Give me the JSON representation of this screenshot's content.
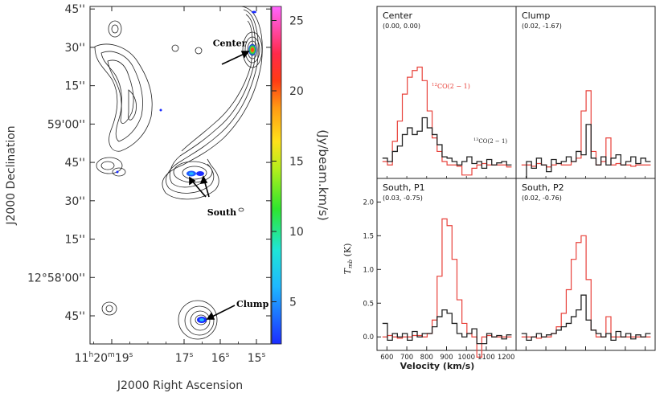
{
  "chart_data": [
    {
      "type": "heatmap",
      "title": "",
      "xlabel": "J2000 Right Ascension",
      "ylabel": "J2000 Declination",
      "colorbar_label": "(Jy/beam.km/s)",
      "colorbar_range": [
        2,
        26
      ],
      "colorbar_ticks": [
        5,
        10,
        15,
        20,
        25
      ],
      "colorbar_tick_labels": [
        "5",
        "10",
        "15",
        "20",
        "25"
      ],
      "x_ticks": [
        {
          "h": "11",
          "m": "20",
          "s": "19",
          "ra_s": 19
        },
        {
          "h": "",
          "m": "",
          "s": "17",
          "ra_s": 17
        },
        {
          "h": "",
          "m": "",
          "s": "16",
          "ra_s": 16
        },
        {
          "h": "",
          "m": "",
          "s": "15",
          "ra_s": 15
        }
      ],
      "x_sup_h": "h",
      "x_sup_m": "m",
      "x_sup_s": "s",
      "ra_range": [
        19.6,
        14.6
      ],
      "dec_range_arcsec": [
        3634,
        3766
      ],
      "y_ticks": [
        {
          "label": "45''",
          "dec_arcsec": 3765
        },
        {
          "label": "30''",
          "dec_arcsec": 3750
        },
        {
          "label": "15''",
          "dec_arcsec": 3735
        },
        {
          "label": "59'00''",
          "dec_arcsec": 3720
        },
        {
          "label": "45''",
          "dec_arcsec": 3705
        },
        {
          "label": "30''",
          "dec_arcsec": 3690
        },
        {
          "label": "15''",
          "dec_arcsec": 3675
        },
        {
          "label": "12°58'00''",
          "dec_arcsec": 3660
        },
        {
          "label": "45''",
          "dec_arcsec": 3645
        }
      ],
      "annotations": [
        {
          "text": "Center",
          "ra_s": 15.05,
          "dec_arcsec": 3750.5
        },
        {
          "text": "South",
          "ra_s": 16.45,
          "dec_arcsec": 3701.5
        },
        {
          "text": "Clump",
          "ra_s": 16.4,
          "dec_arcsec": 3648.5
        }
      ]
    },
    {
      "type": "line",
      "xlabel": "Velocity (km/s)",
      "ylabel": "T_mb (K)",
      "ylabel_main": "T",
      "ylabel_sub": "mb",
      "ylabel_unit": " (K)",
      "xlim": [
        550,
        1250
      ],
      "ylim": [
        -0.2,
        2.35
      ],
      "x_ticks": [
        600,
        700,
        800,
        900,
        1000,
        1100,
        1200
      ],
      "y_ticks": [
        0.0,
        0.5,
        1.0,
        1.5,
        2.0
      ],
      "y_tick_labels": [
        "0.0",
        "0.5",
        "1.0",
        "1.5",
        "2.0"
      ],
      "series_colors": {
        "co12": "#e8413a",
        "co13": "#222222"
      },
      "series_names": {
        "co12": "12CO(2-1)",
        "co13": "13CO(2-1)"
      },
      "legend": {
        "co12_sup": "12",
        "co12_text": "CO(2 − 1)",
        "co13_sup": "13",
        "co13_text": "CO(2 − 1)"
      },
      "panels": [
        {
          "name": "Center",
          "coords": "(0.00, 0.00)",
          "velocity": [
            590,
            615,
            640,
            665,
            690,
            715,
            740,
            765,
            790,
            815,
            840,
            865,
            890,
            915,
            940,
            965,
            990,
            1015,
            1040,
            1065,
            1090,
            1115,
            1140,
            1165,
            1190,
            1215
          ],
          "co12": [
            0.05,
            0.0,
            0.35,
            0.65,
            1.05,
            1.3,
            1.4,
            1.45,
            1.25,
            0.8,
            0.4,
            0.2,
            0.05,
            0.0,
            0.0,
            -0.02,
            -0.15,
            -0.15,
            -0.05,
            0.0,
            0.02,
            0.0,
            0.0,
            0.0,
            0.0,
            -0.03
          ],
          "co13": [
            0.1,
            0.05,
            0.2,
            0.28,
            0.45,
            0.55,
            0.45,
            0.5,
            0.7,
            0.55,
            0.45,
            0.3,
            0.12,
            0.1,
            0.05,
            0.0,
            0.05,
            0.12,
            0.02,
            0.05,
            -0.05,
            0.08,
            0.0,
            0.03,
            0.05,
            0.0
          ]
        },
        {
          "name": "Clump",
          "coords": "(0.02, -1.67)",
          "velocity": [
            590,
            615,
            640,
            665,
            690,
            715,
            740,
            765,
            790,
            815,
            840,
            865,
            890,
            915,
            940,
            965,
            990,
            1015,
            1040,
            1065,
            1090,
            1115,
            1140,
            1165,
            1190,
            1215
          ],
          "co12": [
            0.0,
            0.0,
            -0.02,
            0.02,
            0.0,
            -0.03,
            0.0,
            0.02,
            0.0,
            0.0,
            0.05,
            0.1,
            0.8,
            1.1,
            0.2,
            0.0,
            0.05,
            0.4,
            0.0,
            0.02,
            0.0,
            0.0,
            -0.02,
            0.0,
            0.0,
            0.0
          ],
          "co13": [
            -0.3,
            0.05,
            -0.05,
            0.1,
            0.0,
            -0.1,
            0.08,
            0.02,
            0.05,
            0.12,
            0.05,
            0.2,
            0.15,
            0.6,
            0.1,
            0.0,
            0.12,
            0.0,
            0.1,
            0.15,
            0.0,
            0.05,
            0.12,
            0.02,
            0.1,
            0.05
          ]
        },
        {
          "name": "South, P1",
          "coords": "(0.03, -0.75)",
          "velocity": [
            590,
            615,
            640,
            665,
            690,
            715,
            740,
            765,
            790,
            815,
            840,
            865,
            890,
            915,
            940,
            965,
            990,
            1015,
            1040,
            1065,
            1090,
            1115,
            1140,
            1165,
            1190,
            1215
          ],
          "co12": [
            0.0,
            0.02,
            0.0,
            -0.02,
            0.0,
            0.0,
            0.02,
            0.02,
            0.0,
            0.05,
            0.25,
            0.9,
            1.75,
            1.65,
            1.15,
            0.55,
            0.2,
            0.05,
            0.0,
            -0.3,
            0.0,
            0.02,
            0.0,
            0.0,
            0.0,
            0.0
          ],
          "co13": [
            0.2,
            -0.05,
            0.05,
            0.0,
            0.05,
            -0.05,
            0.08,
            0.0,
            0.05,
            0.05,
            0.15,
            0.3,
            0.4,
            0.35,
            0.2,
            0.05,
            0.0,
            0.05,
            0.12,
            -0.1,
            -0.1,
            0.05,
            0.0,
            0.02,
            -0.03,
            0.03
          ]
        },
        {
          "name": "South, P2",
          "coords": "(0.02, -0.76)",
          "velocity": [
            590,
            615,
            640,
            665,
            690,
            715,
            740,
            765,
            790,
            815,
            840,
            865,
            890,
            915,
            940,
            965,
            990,
            1015,
            1040,
            1065,
            1090,
            1115,
            1140,
            1165,
            1190,
            1215
          ],
          "co12": [
            0.0,
            0.0,
            0.0,
            -0.02,
            0.0,
            0.0,
            0.05,
            0.15,
            0.35,
            0.7,
            1.15,
            1.4,
            1.5,
            0.85,
            0.1,
            0.0,
            0.0,
            0.3,
            0.0,
            0.0,
            0.0,
            0.0,
            0.0,
            0.0,
            0.0,
            0.0
          ],
          "co13": [
            0.05,
            -0.05,
            0.0,
            0.05,
            0.0,
            0.03,
            0.05,
            0.1,
            0.15,
            0.2,
            0.3,
            0.4,
            0.62,
            0.25,
            0.1,
            0.05,
            0.0,
            0.05,
            -0.05,
            0.08,
            0.0,
            0.05,
            -0.03,
            0.03,
            0.0,
            0.05
          ]
        }
      ]
    }
  ]
}
